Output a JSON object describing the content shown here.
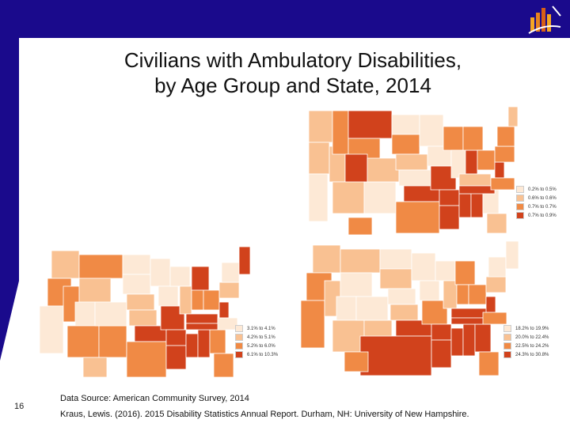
{
  "slide": {
    "title_line1": "Civilians with Ambulatory Disabilities,",
    "title_line2": "by Age Group and State, 2014",
    "slide_number": "16",
    "source_line1": "Data Source: American Community Survey, 2014",
    "source_line2": "Kraus, Lewis. (2016). 2015 Disability Statistics Annual Report. Durham, NH: University of New Hampshire."
  },
  "colors": {
    "band": "#1a0a8c",
    "c1": "#fde9d6",
    "c2": "#f9c192",
    "c3": "#f08a45",
    "c4": "#d1421c"
  },
  "maps": [
    {
      "label": "top-right",
      "legend": [
        "0.2% to 0.5%",
        "0.6% to 0.6%",
        "0.7% to 0.7%",
        "0.7% to 0.9%"
      ]
    },
    {
      "label": "bottom-left",
      "legend": [
        "3.1% to 4.1%",
        "4.2% to 5.1%",
        "5.2% to 6.0%",
        "6.1% to 10.3%"
      ]
    },
    {
      "label": "bottom-right",
      "legend": [
        "18.2% to 19.9%",
        "20.0% to 22.4%",
        "22.5% to 24.2%",
        "24.3% to 30.8%"
      ]
    }
  ],
  "logo_icon": "bar-chart-logo-icon"
}
